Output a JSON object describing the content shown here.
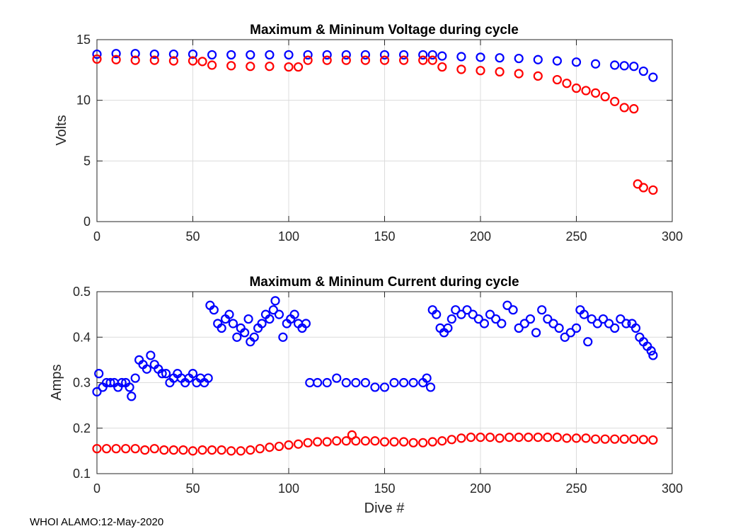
{
  "footer": "WHOI ALAMO:12-May-2020",
  "colors": {
    "max": "#0000ff",
    "min": "#ff0000"
  },
  "chart_data": [
    {
      "type": "scatter",
      "title": "Maximum & Mininum Voltage during cycle",
      "xlabel": "",
      "ylabel": "Volts",
      "xlim": [
        0,
        300
      ],
      "ylim": [
        0,
        15
      ],
      "xticks": [
        0,
        50,
        100,
        150,
        200,
        250,
        300
      ],
      "yticks": [
        0,
        5,
        10,
        15
      ],
      "grid": true,
      "marker": "circle-open",
      "series": [
        {
          "name": "Maximum",
          "color": "#0000ff",
          "x": [
            0,
            10,
            20,
            30,
            40,
            50,
            60,
            70,
            80,
            90,
            100,
            110,
            120,
            130,
            140,
            150,
            160,
            170,
            175,
            180,
            190,
            200,
            210,
            220,
            230,
            240,
            250,
            260,
            270,
            275,
            280,
            285,
            290
          ],
          "y": [
            13.8,
            13.85,
            13.85,
            13.8,
            13.8,
            13.8,
            13.75,
            13.75,
            13.75,
            13.75,
            13.75,
            13.75,
            13.75,
            13.75,
            13.75,
            13.75,
            13.75,
            13.75,
            13.75,
            13.65,
            13.6,
            13.55,
            13.5,
            13.45,
            13.35,
            13.25,
            13.15,
            13.0,
            12.9,
            12.85,
            12.8,
            12.4,
            11.9
          ]
        },
        {
          "name": "Minimum",
          "color": "#ff0000",
          "x": [
            0,
            10,
            20,
            30,
            40,
            50,
            55,
            60,
            70,
            80,
            90,
            100,
            105,
            110,
            120,
            130,
            140,
            150,
            160,
            170,
            175,
            180,
            190,
            200,
            210,
            220,
            230,
            240,
            245,
            250,
            255,
            260,
            265,
            270,
            275,
            280,
            282,
            285,
            290
          ],
          "y": [
            13.4,
            13.35,
            13.3,
            13.3,
            13.25,
            13.25,
            13.2,
            12.9,
            12.85,
            12.8,
            12.8,
            12.75,
            12.75,
            13.3,
            13.3,
            13.3,
            13.3,
            13.3,
            13.3,
            13.3,
            13.3,
            12.75,
            12.55,
            12.45,
            12.35,
            12.2,
            12.0,
            11.7,
            11.4,
            11.0,
            10.8,
            10.6,
            10.3,
            9.9,
            9.4,
            9.3,
            3.1,
            2.8,
            2.6
          ]
        }
      ]
    },
    {
      "type": "scatter",
      "title": "Maximum & Mininum Current during cycle",
      "xlabel": "Dive #",
      "ylabel": "Amps",
      "xlim": [
        0,
        300
      ],
      "ylim": [
        0.1,
        0.5
      ],
      "xticks": [
        0,
        50,
        100,
        150,
        200,
        250,
        300
      ],
      "yticks": [
        0.1,
        0.2,
        0.3,
        0.4,
        0.5
      ],
      "grid": true,
      "marker": "circle-open",
      "series": [
        {
          "name": "Maximum",
          "color": "#0000ff",
          "x": [
            0,
            1,
            3,
            5,
            7,
            9,
            11,
            13,
            15,
            17,
            18,
            20,
            22,
            24,
            26,
            28,
            30,
            32,
            34,
            36,
            38,
            40,
            42,
            44,
            46,
            48,
            50,
            52,
            54,
            56,
            58,
            59,
            61,
            63,
            65,
            67,
            69,
            71,
            73,
            75,
            77,
            79,
            80,
            82,
            84,
            86,
            88,
            90,
            92,
            93,
            95,
            97,
            99,
            101,
            103,
            105,
            107,
            109,
            111,
            115,
            120,
            125,
            130,
            135,
            140,
            145,
            150,
            155,
            160,
            165,
            170,
            172,
            174,
            175,
            177,
            179,
            181,
            183,
            185,
            187,
            190,
            193,
            196,
            199,
            202,
            205,
            208,
            211,
            214,
            217,
            220,
            223,
            226,
            229,
            232,
            235,
            238,
            241,
            244,
            247,
            250,
            252,
            254,
            256,
            258,
            261,
            264,
            267,
            270,
            273,
            276,
            279,
            281,
            283,
            285,
            287,
            289,
            290
          ],
          "y": [
            0.28,
            0.32,
            0.29,
            0.3,
            0.3,
            0.3,
            0.29,
            0.3,
            0.3,
            0.29,
            0.27,
            0.31,
            0.35,
            0.34,
            0.33,
            0.36,
            0.34,
            0.33,
            0.32,
            0.32,
            0.3,
            0.31,
            0.32,
            0.31,
            0.3,
            0.31,
            0.32,
            0.3,
            0.31,
            0.3,
            0.31,
            0.47,
            0.46,
            0.43,
            0.42,
            0.44,
            0.45,
            0.43,
            0.4,
            0.42,
            0.41,
            0.44,
            0.39,
            0.4,
            0.42,
            0.43,
            0.45,
            0.44,
            0.46,
            0.48,
            0.45,
            0.4,
            0.43,
            0.44,
            0.45,
            0.43,
            0.42,
            0.43,
            0.3,
            0.3,
            0.3,
            0.31,
            0.3,
            0.3,
            0.3,
            0.29,
            0.29,
            0.3,
            0.3,
            0.3,
            0.3,
            0.31,
            0.29,
            0.46,
            0.45,
            0.42,
            0.41,
            0.42,
            0.44,
            0.46,
            0.45,
            0.46,
            0.45,
            0.44,
            0.43,
            0.45,
            0.44,
            0.43,
            0.47,
            0.46,
            0.42,
            0.43,
            0.44,
            0.41,
            0.46,
            0.44,
            0.43,
            0.42,
            0.4,
            0.41,
            0.42,
            0.46,
            0.45,
            0.39,
            0.44,
            0.43,
            0.44,
            0.43,
            0.42,
            0.44,
            0.43,
            0.43,
            0.42,
            0.4,
            0.39,
            0.38,
            0.37,
            0.36
          ]
        },
        {
          "name": "Minimum",
          "color": "#ff0000",
          "x": [
            0,
            5,
            10,
            15,
            20,
            25,
            30,
            35,
            40,
            45,
            50,
            55,
            60,
            65,
            70,
            75,
            80,
            85,
            90,
            95,
            100,
            105,
            110,
            115,
            120,
            125,
            130,
            133,
            135,
            140,
            145,
            150,
            155,
            160,
            165,
            170,
            175,
            180,
            185,
            190,
            195,
            200,
            205,
            210,
            215,
            220,
            225,
            230,
            235,
            240,
            245,
            250,
            255,
            260,
            265,
            270,
            275,
            280,
            285,
            290
          ],
          "y": [
            0.155,
            0.155,
            0.155,
            0.155,
            0.155,
            0.152,
            0.155,
            0.152,
            0.152,
            0.152,
            0.15,
            0.152,
            0.152,
            0.152,
            0.15,
            0.15,
            0.152,
            0.155,
            0.158,
            0.16,
            0.163,
            0.165,
            0.168,
            0.17,
            0.17,
            0.172,
            0.172,
            0.185,
            0.172,
            0.172,
            0.172,
            0.17,
            0.17,
            0.17,
            0.168,
            0.168,
            0.17,
            0.172,
            0.175,
            0.178,
            0.18,
            0.18,
            0.18,
            0.178,
            0.18,
            0.18,
            0.18,
            0.18,
            0.18,
            0.18,
            0.178,
            0.178,
            0.178,
            0.176,
            0.176,
            0.176,
            0.176,
            0.176,
            0.175,
            0.174
          ]
        }
      ]
    }
  ]
}
